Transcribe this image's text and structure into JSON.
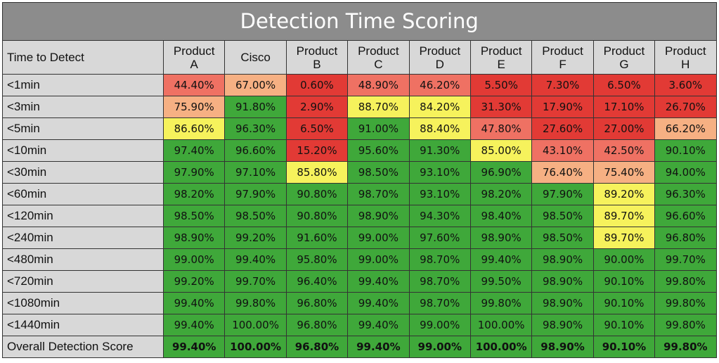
{
  "chart_data": {
    "type": "table",
    "title": "Detection Time Scoring",
    "corner_header": "Time to Detect",
    "columns": [
      [
        "Product",
        "A"
      ],
      [
        "Cisco"
      ],
      [
        "Product",
        "B"
      ],
      [
        "Product",
        "C"
      ],
      [
        "Product",
        "D"
      ],
      [
        "Product",
        "E"
      ],
      [
        "Product",
        "F"
      ],
      [
        "Product",
        "G"
      ],
      [
        "Product",
        "H"
      ]
    ],
    "rows": [
      {
        "label": "<1min",
        "values": [
          "44.40%",
          "67.00%",
          "0.60%",
          "48.90%",
          "46.20%",
          "5.50%",
          "7.30%",
          "6.50%",
          "3.60%"
        ],
        "colors": [
          "salmon",
          "orange",
          "red",
          "salmon",
          "salmon",
          "red",
          "red",
          "red",
          "red"
        ]
      },
      {
        "label": "<3min",
        "values": [
          "75.90%",
          "91.80%",
          "2.90%",
          "88.70%",
          "84.20%",
          "31.30%",
          "17.90%",
          "17.10%",
          "26.70%"
        ],
        "colors": [
          "orange",
          "green",
          "red",
          "yellow",
          "yellow",
          "red",
          "red",
          "red",
          "red"
        ]
      },
      {
        "label": "<5min",
        "values": [
          "86.60%",
          "96.30%",
          "6.50%",
          "91.00%",
          "88.40%",
          "47.80%",
          "27.60%",
          "27.00%",
          "66.20%"
        ],
        "colors": [
          "yellow",
          "green",
          "red",
          "green",
          "yellow",
          "salmon",
          "red",
          "red",
          "orange"
        ]
      },
      {
        "label": "<10min",
        "values": [
          "97.40%",
          "96.60%",
          "15.20%",
          "95.60%",
          "91.30%",
          "85.00%",
          "43.10%",
          "42.50%",
          "90.10%"
        ],
        "colors": [
          "green",
          "green",
          "red",
          "green",
          "green",
          "yellow",
          "salmon",
          "salmon",
          "green"
        ]
      },
      {
        "label": "<30min",
        "values": [
          "97.90%",
          "97.10%",
          "85.80%",
          "98.50%",
          "93.10%",
          "96.90%",
          "76.40%",
          "75.40%",
          "94.00%"
        ],
        "colors": [
          "green",
          "green",
          "yellow",
          "green",
          "green",
          "green",
          "orange",
          "orange",
          "green"
        ]
      },
      {
        "label": "<60min",
        "values": [
          "98.20%",
          "97.90%",
          "90.80%",
          "98.70%",
          "93.10%",
          "98.20%",
          "97.90%",
          "89.20%",
          "96.30%"
        ],
        "colors": [
          "green",
          "green",
          "green",
          "green",
          "green",
          "green",
          "green",
          "yellow",
          "green"
        ]
      },
      {
        "label": "<120min",
        "values": [
          "98.50%",
          "98.50%",
          "90.80%",
          "98.90%",
          "94.30%",
          "98.40%",
          "98.50%",
          "89.70%",
          "96.60%"
        ],
        "colors": [
          "green",
          "green",
          "green",
          "green",
          "green",
          "green",
          "green",
          "yellow",
          "green"
        ]
      },
      {
        "label": "<240min",
        "values": [
          "98.90%",
          "99.20%",
          "91.60%",
          "99.00%",
          "97.60%",
          "98.90%",
          "98.50%",
          "89.70%",
          "96.80%"
        ],
        "colors": [
          "green",
          "green",
          "green",
          "green",
          "green",
          "green",
          "green",
          "yellow",
          "green"
        ]
      },
      {
        "label": "<480min",
        "values": [
          "99.00%",
          "99.40%",
          "95.80%",
          "99.00%",
          "98.70%",
          "99.40%",
          "98.90%",
          "90.00%",
          "99.70%"
        ],
        "colors": [
          "green",
          "green",
          "green",
          "green",
          "green",
          "green",
          "green",
          "green",
          "green"
        ]
      },
      {
        "label": "<720min",
        "values": [
          "99.20%",
          "99.70%",
          "96.40%",
          "99.40%",
          "98.70%",
          "99.50%",
          "98.90%",
          "90.10%",
          "99.80%"
        ],
        "colors": [
          "green",
          "green",
          "green",
          "green",
          "green",
          "green",
          "green",
          "green",
          "green"
        ]
      },
      {
        "label": "<1080min",
        "values": [
          "99.40%",
          "99.80%",
          "96.80%",
          "99.40%",
          "98.70%",
          "99.80%",
          "98.90%",
          "90.10%",
          "99.80%"
        ],
        "colors": [
          "green",
          "green",
          "green",
          "green",
          "green",
          "green",
          "green",
          "green",
          "green"
        ]
      },
      {
        "label": "<1440min",
        "values": [
          "99.40%",
          "100.00%",
          "96.80%",
          "99.40%",
          "99.00%",
          "100.00%",
          "98.90%",
          "90.10%",
          "99.80%"
        ],
        "colors": [
          "green",
          "green",
          "green",
          "green",
          "green",
          "green",
          "green",
          "green",
          "green"
        ]
      }
    ],
    "overall": {
      "label": "Overall Detection Score",
      "values": [
        "99.40%",
        "100.00%",
        "96.80%",
        "99.40%",
        "99.00%",
        "100.00%",
        "98.90%",
        "90.10%",
        "99.80%"
      ],
      "colors": [
        "green",
        "green",
        "green",
        "green",
        "green",
        "green",
        "green",
        "green",
        "green"
      ]
    },
    "color_scale": {
      "green": "#3fa83a",
      "yellow": "#f6f25c",
      "orange": "#f6b083",
      "salmon": "#ef7163",
      "red": "#e23a35",
      "header": "#d8d8d8",
      "title_bar": "#8c8c8c"
    }
  }
}
